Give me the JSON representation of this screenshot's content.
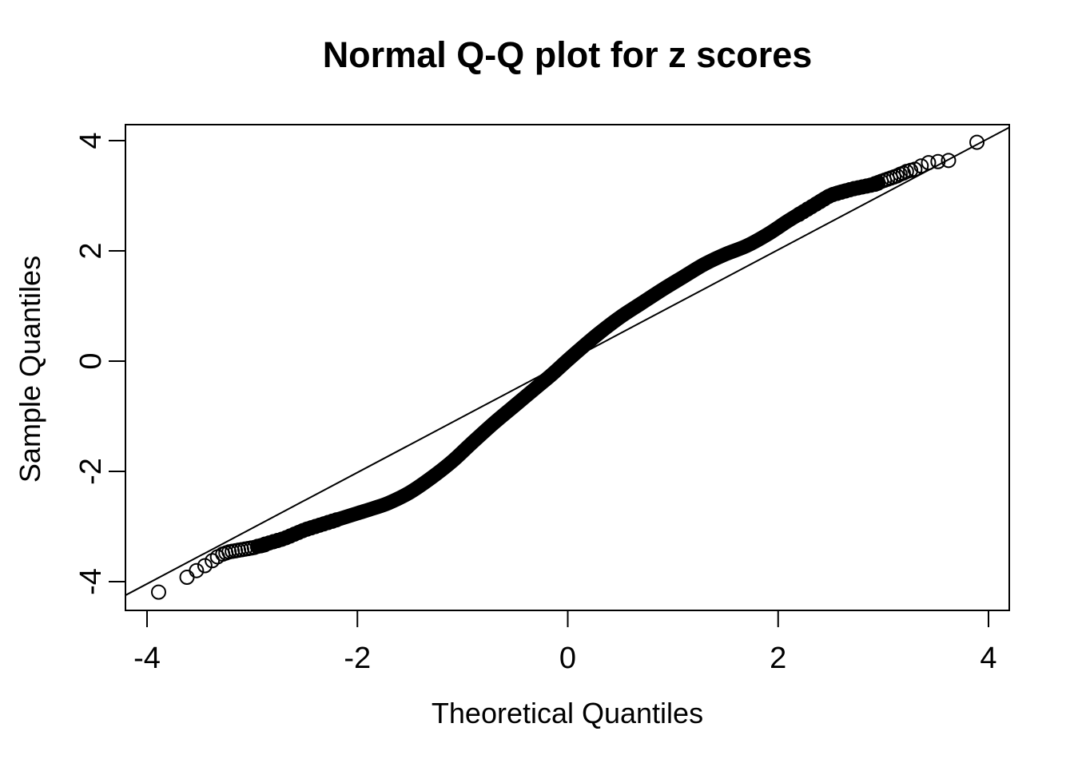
{
  "chart_data": {
    "type": "scatter",
    "title": "Normal Q-Q plot for z scores",
    "xlabel": "Theoretical Quantiles",
    "ylabel": "Sample Quantiles",
    "x_ticks": [
      -4,
      -2,
      0,
      2,
      4
    ],
    "y_ticks": [
      -4,
      -2,
      0,
      2,
      4
    ],
    "xlim": [
      -4.21,
      4.2
    ],
    "ylim": [
      -4.52,
      4.29
    ],
    "grid": false,
    "legend": null,
    "marker": {
      "shape": "open-circle",
      "radius_px": 8.5,
      "stroke_px": 2,
      "color": "#000000"
    },
    "reference_line": {
      "slope": 1.01,
      "intercept": 0,
      "color": "#000000"
    },
    "band_thickness_px": 18,
    "band_centerline": [
      [
        -2.95,
        -3.36
      ],
      [
        -2.7,
        -3.22
      ],
      [
        -2.5,
        -3.06
      ],
      [
        -2.2,
        -2.88
      ],
      [
        -2.0,
        -2.76
      ],
      [
        -1.85,
        -2.67
      ],
      [
        -1.7,
        -2.57
      ],
      [
        -1.5,
        -2.38
      ],
      [
        -1.3,
        -2.12
      ],
      [
        -1.1,
        -1.82
      ],
      [
        -0.92,
        -1.5
      ],
      [
        -0.7,
        -1.12
      ],
      [
        -0.5,
        -0.8
      ],
      [
        -0.3,
        -0.48
      ],
      [
        -0.15,
        -0.24
      ],
      [
        0.0,
        0.02
      ],
      [
        0.15,
        0.27
      ],
      [
        0.3,
        0.51
      ],
      [
        0.5,
        0.8
      ],
      [
        0.7,
        1.05
      ],
      [
        0.91,
        1.31
      ],
      [
        1.1,
        1.53
      ],
      [
        1.3,
        1.76
      ],
      [
        1.5,
        1.94
      ],
      [
        1.7,
        2.09
      ],
      [
        1.9,
        2.3
      ],
      [
        2.1,
        2.55
      ],
      [
        2.3,
        2.78
      ],
      [
        2.5,
        3.01
      ],
      [
        2.7,
        3.12
      ],
      [
        2.95,
        3.22
      ]
    ],
    "left_overlap_chain": [
      [
        -3.22,
        -3.46
      ],
      [
        -3.19,
        -3.45
      ],
      [
        -3.16,
        -3.44
      ],
      [
        -3.13,
        -3.43
      ],
      [
        -3.1,
        -3.42
      ],
      [
        -3.07,
        -3.41
      ],
      [
        -3.04,
        -3.4
      ],
      [
        -3.01,
        -3.39
      ],
      [
        -2.98,
        -3.38
      ],
      [
        -2.95,
        -3.36
      ],
      [
        -2.92,
        -3.35
      ],
      [
        -2.9,
        -3.34
      ],
      [
        -2.88,
        -3.33
      ]
    ],
    "right_overlap_chain": [
      [
        2.92,
        3.22
      ],
      [
        2.95,
        3.24
      ],
      [
        2.98,
        3.26
      ],
      [
        3.01,
        3.28
      ],
      [
        3.04,
        3.3
      ],
      [
        3.07,
        3.32
      ],
      [
        3.1,
        3.34
      ],
      [
        3.13,
        3.36
      ],
      [
        3.16,
        3.39
      ],
      [
        3.19,
        3.41
      ],
      [
        3.22,
        3.44
      ],
      [
        3.26,
        3.46
      ]
    ],
    "left_tail_points": [
      [
        -3.89,
        -4.19
      ],
      [
        -3.62,
        -3.92
      ],
      [
        -3.53,
        -3.8
      ],
      [
        -3.45,
        -3.71
      ],
      [
        -3.38,
        -3.62
      ],
      [
        -3.33,
        -3.55
      ],
      [
        -3.28,
        -3.5
      ],
      [
        -3.25,
        -3.48
      ]
    ],
    "right_tail_points": [
      [
        3.3,
        3.48
      ],
      [
        3.36,
        3.54
      ],
      [
        3.43,
        3.6
      ],
      [
        3.52,
        3.62
      ],
      [
        3.62,
        3.64
      ],
      [
        3.89,
        3.97
      ]
    ],
    "edge_texture": {
      "left": [
        -2.88,
        -2.2
      ],
      "right": [
        2.2,
        2.92
      ],
      "step": 0.04
    },
    "colors": {
      "foreground": "#000000",
      "background": "#ffffff"
    }
  }
}
